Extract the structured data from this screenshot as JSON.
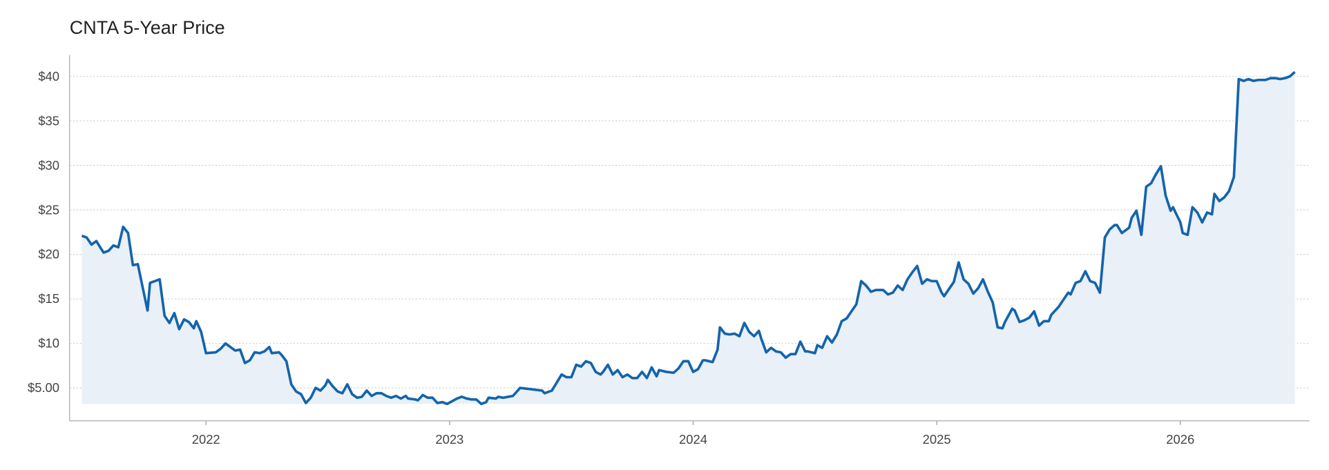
{
  "chart_data": {
    "type": "line",
    "title": "CNTA 5-Year Price",
    "x": [
      2021.49,
      2021.51,
      2021.53,
      2021.55,
      2021.57,
      2021.58,
      2021.6,
      2021.62,
      2021.64,
      2021.66,
      2021.68,
      2021.7,
      2021.72,
      2021.74,
      2021.76,
      2021.77,
      2021.79,
      2021.81,
      2021.83,
      2021.85,
      2021.87,
      2021.89,
      2021.91,
      2021.93,
      2021.95,
      2021.96,
      2021.98,
      2022.0,
      2022.04,
      2022.06,
      2022.08,
      2022.1,
      2022.12,
      2022.14,
      2022.16,
      2022.18,
      2022.2,
      2022.22,
      2022.24,
      2022.26,
      2022.27,
      2022.3,
      2022.31,
      2022.33,
      2022.35,
      2022.37,
      2022.39,
      2022.41,
      2022.43,
      2022.45,
      2022.47,
      2022.49,
      2022.5,
      2022.52,
      2022.54,
      2022.56,
      2022.58,
      2022.6,
      2022.62,
      2022.64,
      2022.66,
      2022.68,
      2022.7,
      2022.72,
      2022.74,
      2022.76,
      2022.78,
      2022.8,
      2022.82,
      2022.83,
      2022.86,
      2022.87,
      2022.89,
      2022.91,
      2022.93,
      2022.95,
      2022.97,
      2022.99,
      2023.01,
      2023.03,
      2023.05,
      2023.07,
      2023.09,
      2023.11,
      2023.13,
      2023.15,
      2023.16,
      2023.19,
      2023.2,
      2023.22,
      2023.24,
      2023.26,
      2023.29,
      2023.38,
      2023.39,
      2023.42,
      2023.46,
      2023.48,
      2023.5,
      2023.52,
      2023.54,
      2023.56,
      2023.58,
      2023.6,
      2023.62,
      2023.63,
      2023.65,
      2023.67,
      2023.69,
      2023.71,
      2023.73,
      2023.75,
      2023.77,
      2023.79,
      2023.81,
      2023.83,
      2023.85,
      2023.86,
      2023.89,
      2023.92,
      2023.94,
      2023.96,
      2023.98,
      2024.0,
      2024.02,
      2024.04,
      2024.05,
      2024.08,
      2024.1,
      2024.11,
      2024.13,
      2024.15,
      2024.17,
      2024.19,
      2024.21,
      2024.23,
      2024.25,
      2024.27,
      2024.28,
      2024.3,
      2024.32,
      2024.34,
      2024.36,
      2024.38,
      2024.4,
      2024.42,
      2024.44,
      2024.46,
      2024.47,
      2024.5,
      2024.51,
      2024.53,
      2024.55,
      2024.57,
      2024.59,
      2024.61,
      2024.63,
      2024.65,
      2024.67,
      2024.69,
      2024.71,
      2024.73,
      2024.75,
      2024.78,
      2024.8,
      2024.82,
      2024.84,
      2024.86,
      2024.88,
      2024.9,
      2024.92,
      2024.94,
      2024.96,
      2024.98,
      2025.0,
      2025.02,
      2025.03,
      2025.06,
      2025.07,
      2025.09,
      2025.11,
      2025.13,
      2025.15,
      2025.17,
      2025.19,
      2025.21,
      2025.23,
      2025.25,
      2025.27,
      2025.28,
      2025.31,
      2025.32,
      2025.34,
      2025.36,
      2025.38,
      2025.4,
      2025.42,
      2025.44,
      2025.46,
      2025.47,
      2025.5,
      2025.51,
      2025.54,
      2025.55,
      2025.57,
      2025.59,
      2025.61,
      2025.63,
      2025.65,
      2025.67,
      2025.69,
      2025.71,
      2025.73,
      2025.74,
      2025.76,
      2025.79,
      2025.8,
      2025.82,
      2025.84,
      2025.86,
      2025.88,
      2025.9,
      2025.92,
      2025.94,
      2025.96,
      2025.97,
      2026.0,
      2026.01,
      2026.03,
      2026.05,
      2026.07,
      2026.09,
      2026.11,
      2026.13,
      2026.14,
      2026.16,
      2026.18,
      2026.2,
      2026.22,
      2026.24,
      2026.26,
      2026.28,
      2026.3,
      2026.32,
      2026.33,
      2026.35,
      2026.37,
      2026.39,
      2026.41,
      2026.43,
      2026.45,
      2026.47
    ],
    "values": [
      22.1,
      21.9,
      21.1,
      21.5,
      20.6,
      20.2,
      20.4,
      21.0,
      20.8,
      23.1,
      22.4,
      18.8,
      18.9,
      16.3,
      13.7,
      16.8,
      17.0,
      17.2,
      13.1,
      12.3,
      13.4,
      11.6,
      12.7,
      12.4,
      11.7,
      12.5,
      11.3,
      8.9,
      9.0,
      9.4,
      10.0,
      9.6,
      9.2,
      9.3,
      7.8,
      8.1,
      9.0,
      8.9,
      9.1,
      9.6,
      8.9,
      9.0,
      8.7,
      8.0,
      5.4,
      4.6,
      4.3,
      3.3,
      3.9,
      5.0,
      4.7,
      5.3,
      5.9,
      5.2,
      4.6,
      4.4,
      5.4,
      4.3,
      3.9,
      4.0,
      4.7,
      4.1,
      4.4,
      4.4,
      4.1,
      3.9,
      4.1,
      3.8,
      4.1,
      3.8,
      3.7,
      3.6,
      4.2,
      3.9,
      3.9,
      3.3,
      3.4,
      3.2,
      3.5,
      3.8,
      4.0,
      3.8,
      3.7,
      3.7,
      3.2,
      3.4,
      3.9,
      3.8,
      4.0,
      3.9,
      4.0,
      4.1,
      5.0,
      4.7,
      4.4,
      4.7,
      6.5,
      6.2,
      6.2,
      7.6,
      7.4,
      8.0,
      7.8,
      6.8,
      6.5,
      6.8,
      7.6,
      6.5,
      7.0,
      6.2,
      6.5,
      6.1,
      6.1,
      6.8,
      6.1,
      7.3,
      6.3,
      7.0,
      6.8,
      6.7,
      7.2,
      8.0,
      8.0,
      6.8,
      7.1,
      8.1,
      8.1,
      7.9,
      9.3,
      11.8,
      11.1,
      11.0,
      11.1,
      10.8,
      12.3,
      11.3,
      10.8,
      11.4,
      10.5,
      9.0,
      9.5,
      9.1,
      9.0,
      8.4,
      8.8,
      8.8,
      10.2,
      9.1,
      9.1,
      8.9,
      9.8,
      9.5,
      10.8,
      10.1,
      11.0,
      12.5,
      12.8,
      13.6,
      14.4,
      17.0,
      16.5,
      15.8,
      16.0,
      16.0,
      15.5,
      15.7,
      16.5,
      16.0,
      17.2,
      18.0,
      18.7,
      16.7,
      17.2,
      17.0,
      17.0,
      15.7,
      15.3,
      16.5,
      16.9,
      19.1,
      17.2,
      16.7,
      15.6,
      16.2,
      17.2,
      15.8,
      14.6,
      11.8,
      11.7,
      12.4,
      13.9,
      13.7,
      12.4,
      12.6,
      12.9,
      13.6,
      12.0,
      12.5,
      12.5,
      13.2,
      14.1,
      14.5,
      15.7,
      15.5,
      16.8,
      17.0,
      18.1,
      17.0,
      16.8,
      15.7,
      21.9,
      22.8,
      23.3,
      23.3,
      22.4,
      23.0,
      24.1,
      24.9,
      22.2,
      27.6,
      28.0,
      29.0,
      29.9,
      26.6,
      24.9,
      25.3,
      23.6,
      22.4,
      22.2,
      25.3,
      24.7,
      23.6,
      24.7,
      24.5,
      26.8,
      26.0,
      26.4,
      27.1,
      28.7,
      39.7,
      39.5,
      39.7,
      39.5,
      39.6,
      39.6,
      39.6,
      39.8,
      39.8,
      39.7,
      39.8,
      40.0,
      40.5
    ],
    "color": "#1464ac",
    "fill": "#e9f0f7",
    "xlim": [
      2021.44,
      2026.53
    ],
    "xticks": [
      2022,
      2023,
      2024,
      2025,
      2026
    ],
    "ylim": [
      1.3,
      42.4
    ],
    "yticks": [
      {
        "value": 5,
        "label": "$5.00"
      },
      {
        "value": 10,
        "label": "$10"
      },
      {
        "value": 15,
        "label": "$15"
      },
      {
        "value": 20,
        "label": "$20"
      },
      {
        "value": 25,
        "label": "$25"
      },
      {
        "value": 30,
        "label": "$30"
      },
      {
        "value": 35,
        "label": "$35"
      },
      {
        "value": 40,
        "label": "$40"
      }
    ],
    "grid": true
  }
}
